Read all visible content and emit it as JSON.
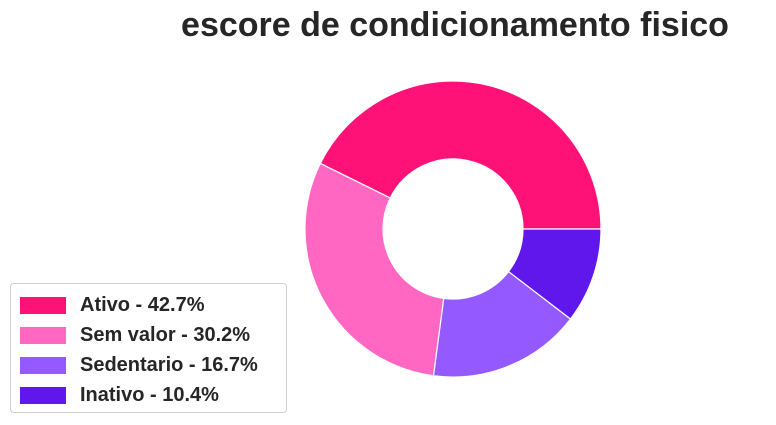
{
  "chart_data": {
    "type": "pie",
    "variant": "donut",
    "title": "escore de condicionamento fisico",
    "slices": [
      {
        "label": "Ativo",
        "value": 42.7,
        "color": "#ff1277",
        "legend": "Ativo - 42.7%"
      },
      {
        "label": "Sem valor",
        "value": 30.2,
        "color": "#ff67c3",
        "legend": "Sem valor - 30.2%"
      },
      {
        "label": "Sedentario",
        "value": 16.7,
        "color": "#9459ff",
        "legend": "Sedentario - 16.7%"
      },
      {
        "label": "Inativo",
        "value": 10.4,
        "color": "#6017ec",
        "legend": "Inativo - 10.4%"
      }
    ],
    "start_angle_deg": 0,
    "direction": "counterclockwise",
    "legend_position": "lower-left"
  }
}
